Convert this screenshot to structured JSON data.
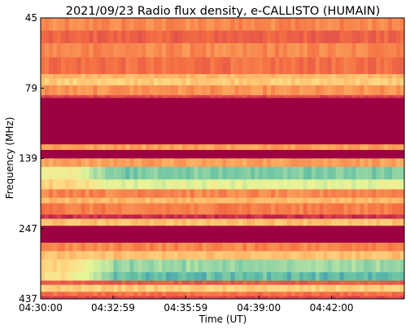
{
  "chart_data": {
    "type": "heatmap",
    "title": "2021/09/23  Radio flux density, e-CALLISTO (HUMAIN)",
    "xlabel": "Time (UT)",
    "ylabel": "Frequency (MHz)",
    "x_ticks": [
      "04:30:00",
      "04:32:59",
      "04:35:59",
      "04:39:00",
      "04:42:00"
    ],
    "x_tick_seconds": [
      0,
      179,
      359,
      540,
      720
    ],
    "x_range_seconds": [
      0,
      900
    ],
    "y_ticks": [
      "45",
      "79",
      "139",
      "247",
      "437"
    ],
    "y_range_mhz": [
      45,
      437
    ],
    "y_tick_fraction": [
      0.0,
      0.25,
      0.5,
      0.75,
      1.0
    ],
    "colormap": "Spectral_r",
    "colors": {
      "background_dark": "#9e0142",
      "low": "#d53e4f",
      "mid_low": "#f46d43",
      "mid": "#fdae61",
      "mid_high": "#fee08b",
      "high": "#e6f598",
      "very_high": "#abdda4",
      "peak": "#66c2a5",
      "extreme": "#3288bd"
    },
    "bands": [
      {
        "f0": 0.0,
        "f1": 0.045,
        "level": 0.3
      },
      {
        "f0": 0.045,
        "f1": 0.09,
        "level": 0.22
      },
      {
        "f0": 0.09,
        "f1": 0.14,
        "level": 0.3
      },
      {
        "f0": 0.14,
        "f1": 0.2,
        "level": 0.25
      },
      {
        "f0": 0.2,
        "f1": 0.215,
        "level": 0.4
      },
      {
        "f0": 0.215,
        "f1": 0.24,
        "level": 0.45
      },
      {
        "f0": 0.24,
        "f1": 0.275,
        "level": 0.32
      },
      {
        "f0": 0.275,
        "f1": 0.285,
        "level": 0.15
      },
      {
        "f0": 0.285,
        "f1": 0.45,
        "level": 0.0
      },
      {
        "f0": 0.45,
        "f1": 0.47,
        "level": 0.35
      },
      {
        "f0": 0.47,
        "f1": 0.5,
        "level": 0.0
      },
      {
        "f0": 0.5,
        "f1": 0.53,
        "level": 0.35
      },
      {
        "f0": 0.53,
        "f1": 0.575,
        "level": 0.55,
        "burst": 0.28
      },
      {
        "f0": 0.575,
        "f1": 0.61,
        "level": 0.45,
        "burst": 0.18
      },
      {
        "f0": 0.61,
        "f1": 0.64,
        "level": 0.3
      },
      {
        "f0": 0.64,
        "f1": 0.66,
        "level": 0.4
      },
      {
        "f0": 0.66,
        "f1": 0.7,
        "level": 0.28
      },
      {
        "f0": 0.7,
        "f1": 0.715,
        "level": 0.1
      },
      {
        "f0": 0.715,
        "f1": 0.74,
        "level": 0.42
      },
      {
        "f0": 0.74,
        "f1": 0.8,
        "level": 0.0
      },
      {
        "f0": 0.8,
        "f1": 0.83,
        "level": 0.3
      },
      {
        "f0": 0.83,
        "f1": 0.86,
        "level": 0.42
      },
      {
        "f0": 0.86,
        "f1": 0.905,
        "level": 0.48,
        "burst": 0.3
      },
      {
        "f0": 0.905,
        "f1": 0.935,
        "level": 0.5,
        "burst": 0.38
      },
      {
        "f0": 0.935,
        "f1": 0.95,
        "level": 0.2
      },
      {
        "f0": 0.95,
        "f1": 0.975,
        "level": 0.45
      },
      {
        "f0": 0.975,
        "f1": 0.99,
        "level": 0.25
      },
      {
        "f0": 0.99,
        "f1": 1.0,
        "level": 0.15
      }
    ],
    "burst_onset_seconds": 120,
    "grid": false
  }
}
